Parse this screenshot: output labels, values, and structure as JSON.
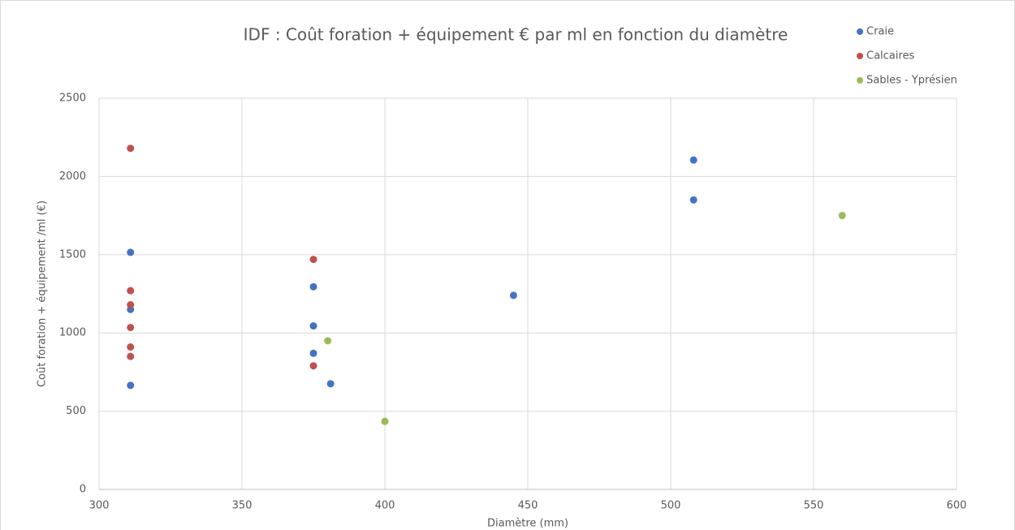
{
  "chart_data": {
    "type": "scatter",
    "title": "IDF : Coût foration + équipement € par ml en fonction du diamètre",
    "x_label": "Diamètre (mm)",
    "y_label": "Coût foration + équipement /ml (€)",
    "xlim": [
      300,
      600
    ],
    "xticks": [
      300,
      350,
      400,
      450,
      500,
      550,
      600
    ],
    "ylim": [
      0,
      2500
    ],
    "yticks": [
      0,
      500,
      1000,
      1500,
      2000,
      2500
    ],
    "grid": true,
    "legend": "top-right",
    "series": [
      {
        "name": "Craie",
        "color": "#4472c4",
        "x": [
          311,
          311,
          311,
          375,
          375,
          375,
          381,
          445,
          508,
          508
        ],
        "values": [
          1515,
          1150,
          665,
          1295,
          1045,
          870,
          675,
          1240,
          2105,
          1850
        ]
      },
      {
        "name": "Calcaires",
        "color": "#c0504d",
        "x": [
          311,
          311,
          311,
          311,
          311,
          311,
          375,
          375
        ],
        "values": [
          2180,
          1270,
          1180,
          1035,
          910,
          850,
          1470,
          790
        ]
      },
      {
        "name": "Sables - Yprésien",
        "color": "#9bbb59",
        "x": [
          380,
          400,
          560
        ],
        "values": [
          950,
          435,
          1750
        ]
      }
    ]
  }
}
